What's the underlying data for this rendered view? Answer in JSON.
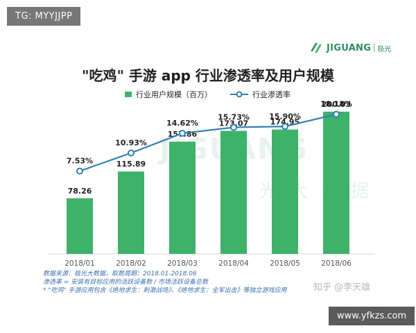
{
  "tag": "TG: MYYJJPP",
  "logo": {
    "brand": "JIGUANG",
    "sub": "极光"
  },
  "watermark": {
    "brand": "JIGUANG",
    "sub": "极光大数据"
  },
  "footnotes": {
    "line1": "数据来源：极光大数据，取数周期：2018.01-2018.06",
    "line2": "渗透率 = 安装有目标应用的活跃设备数 / 市场活跃设备总数",
    "line3": "* \"吃鸡\" 手游应用包含《绝地求生：刺激战场》、《绝地求生：全军出击》等独立游戏应用"
  },
  "zhihu": "知乎 @李天雄",
  "url": "www.yfkzs.com",
  "chart_data": {
    "type": "bar",
    "title": "\"吃鸡\" 手游 app 行业渗透率及用户规模",
    "categories": [
      "2018/01",
      "2018/02",
      "2018/03",
      "2018/04",
      "2018/05",
      "2018/06"
    ],
    "series": [
      {
        "name": "行业用户规模（百万）",
        "type": "bar",
        "values": [
          78.26,
          115.89,
          157.86,
          173.07,
          174.95,
          200.03
        ],
        "labels": [
          "78.26",
          "115.89",
          "157.86",
          "173.07",
          "174.95",
          "200.03"
        ]
      },
      {
        "name": "行业渗透率",
        "type": "line",
        "values": [
          7.53,
          10.93,
          14.62,
          15.73,
          15.9,
          18.18
        ],
        "labels": [
          "7.53%",
          "10.93%",
          "14.62%",
          "15.73%",
          "15.90%",
          "18.18%"
        ]
      }
    ],
    "bar_color": "#3fb26a",
    "line_color": "#2f7eb1",
    "ylim_bar": [
      0,
      240
    ],
    "ylim_line": [
      -8,
      24
    ]
  }
}
